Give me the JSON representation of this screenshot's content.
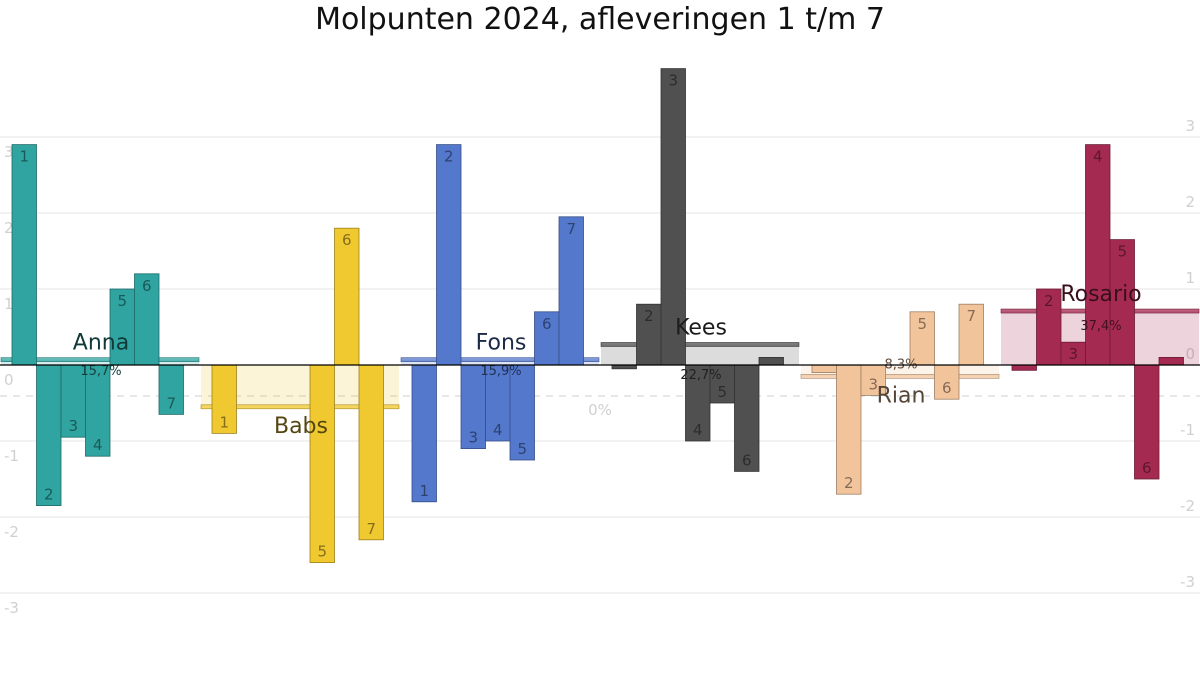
{
  "chart_data": {
    "type": "bar",
    "title": "Molpunten 2024, afleveringen 1 t/m 7",
    "xlabel": "",
    "ylabel": "",
    "ylim": [
      -3,
      4
    ],
    "yticks_left": [
      "3",
      "2",
      "1",
      "0",
      "-1",
      "-2",
      "-3"
    ],
    "yticks_right": [
      "3",
      "2",
      "1",
      "0",
      "-1",
      "-2",
      "-3"
    ],
    "grid": true,
    "zero_line_label": "0%",
    "categories": [
      "1",
      "2",
      "3",
      "4",
      "5",
      "6",
      "7"
    ],
    "series": [
      {
        "name": "Anna",
        "color": "#2fa4a0",
        "values": [
          2.9,
          -1.85,
          -0.95,
          -1.2,
          1.0,
          1.2,
          -0.65
        ],
        "total": 0.07,
        "percent": "15,7%"
      },
      {
        "name": "Babs",
        "color": "#f0c830",
        "values": [
          -0.9,
          0,
          0,
          0,
          -2.6,
          1.8,
          -2.3
        ],
        "total": -0.55,
        "percent": ""
      },
      {
        "name": "Fons",
        "color": "#5478cc",
        "values": [
          -1.8,
          2.9,
          -1.1,
          -1.0,
          -1.25,
          0.7,
          1.95
        ],
        "total": 0.07,
        "percent": "15,9%"
      },
      {
        "name": "Kees",
        "color": "#505050",
        "values": [
          -0.05,
          0.8,
          3.9,
          -1.0,
          -0.5,
          -1.4,
          0.1
        ],
        "total": 0.27,
        "percent": "22,7%"
      },
      {
        "name": "Rian",
        "color": "#f2c49c",
        "values": [
          -0.1,
          -1.7,
          -0.4,
          0,
          0.7,
          -0.45,
          0.8
        ],
        "total": -0.15,
        "percent": "8,3%"
      },
      {
        "name": "Rosario",
        "color": "#a52a52",
        "values": [
          -0.07,
          1.0,
          0.3,
          2.9,
          1.65,
          -1.5,
          0.1
        ],
        "total": 0.71,
        "percent": "37,4%"
      }
    ]
  }
}
